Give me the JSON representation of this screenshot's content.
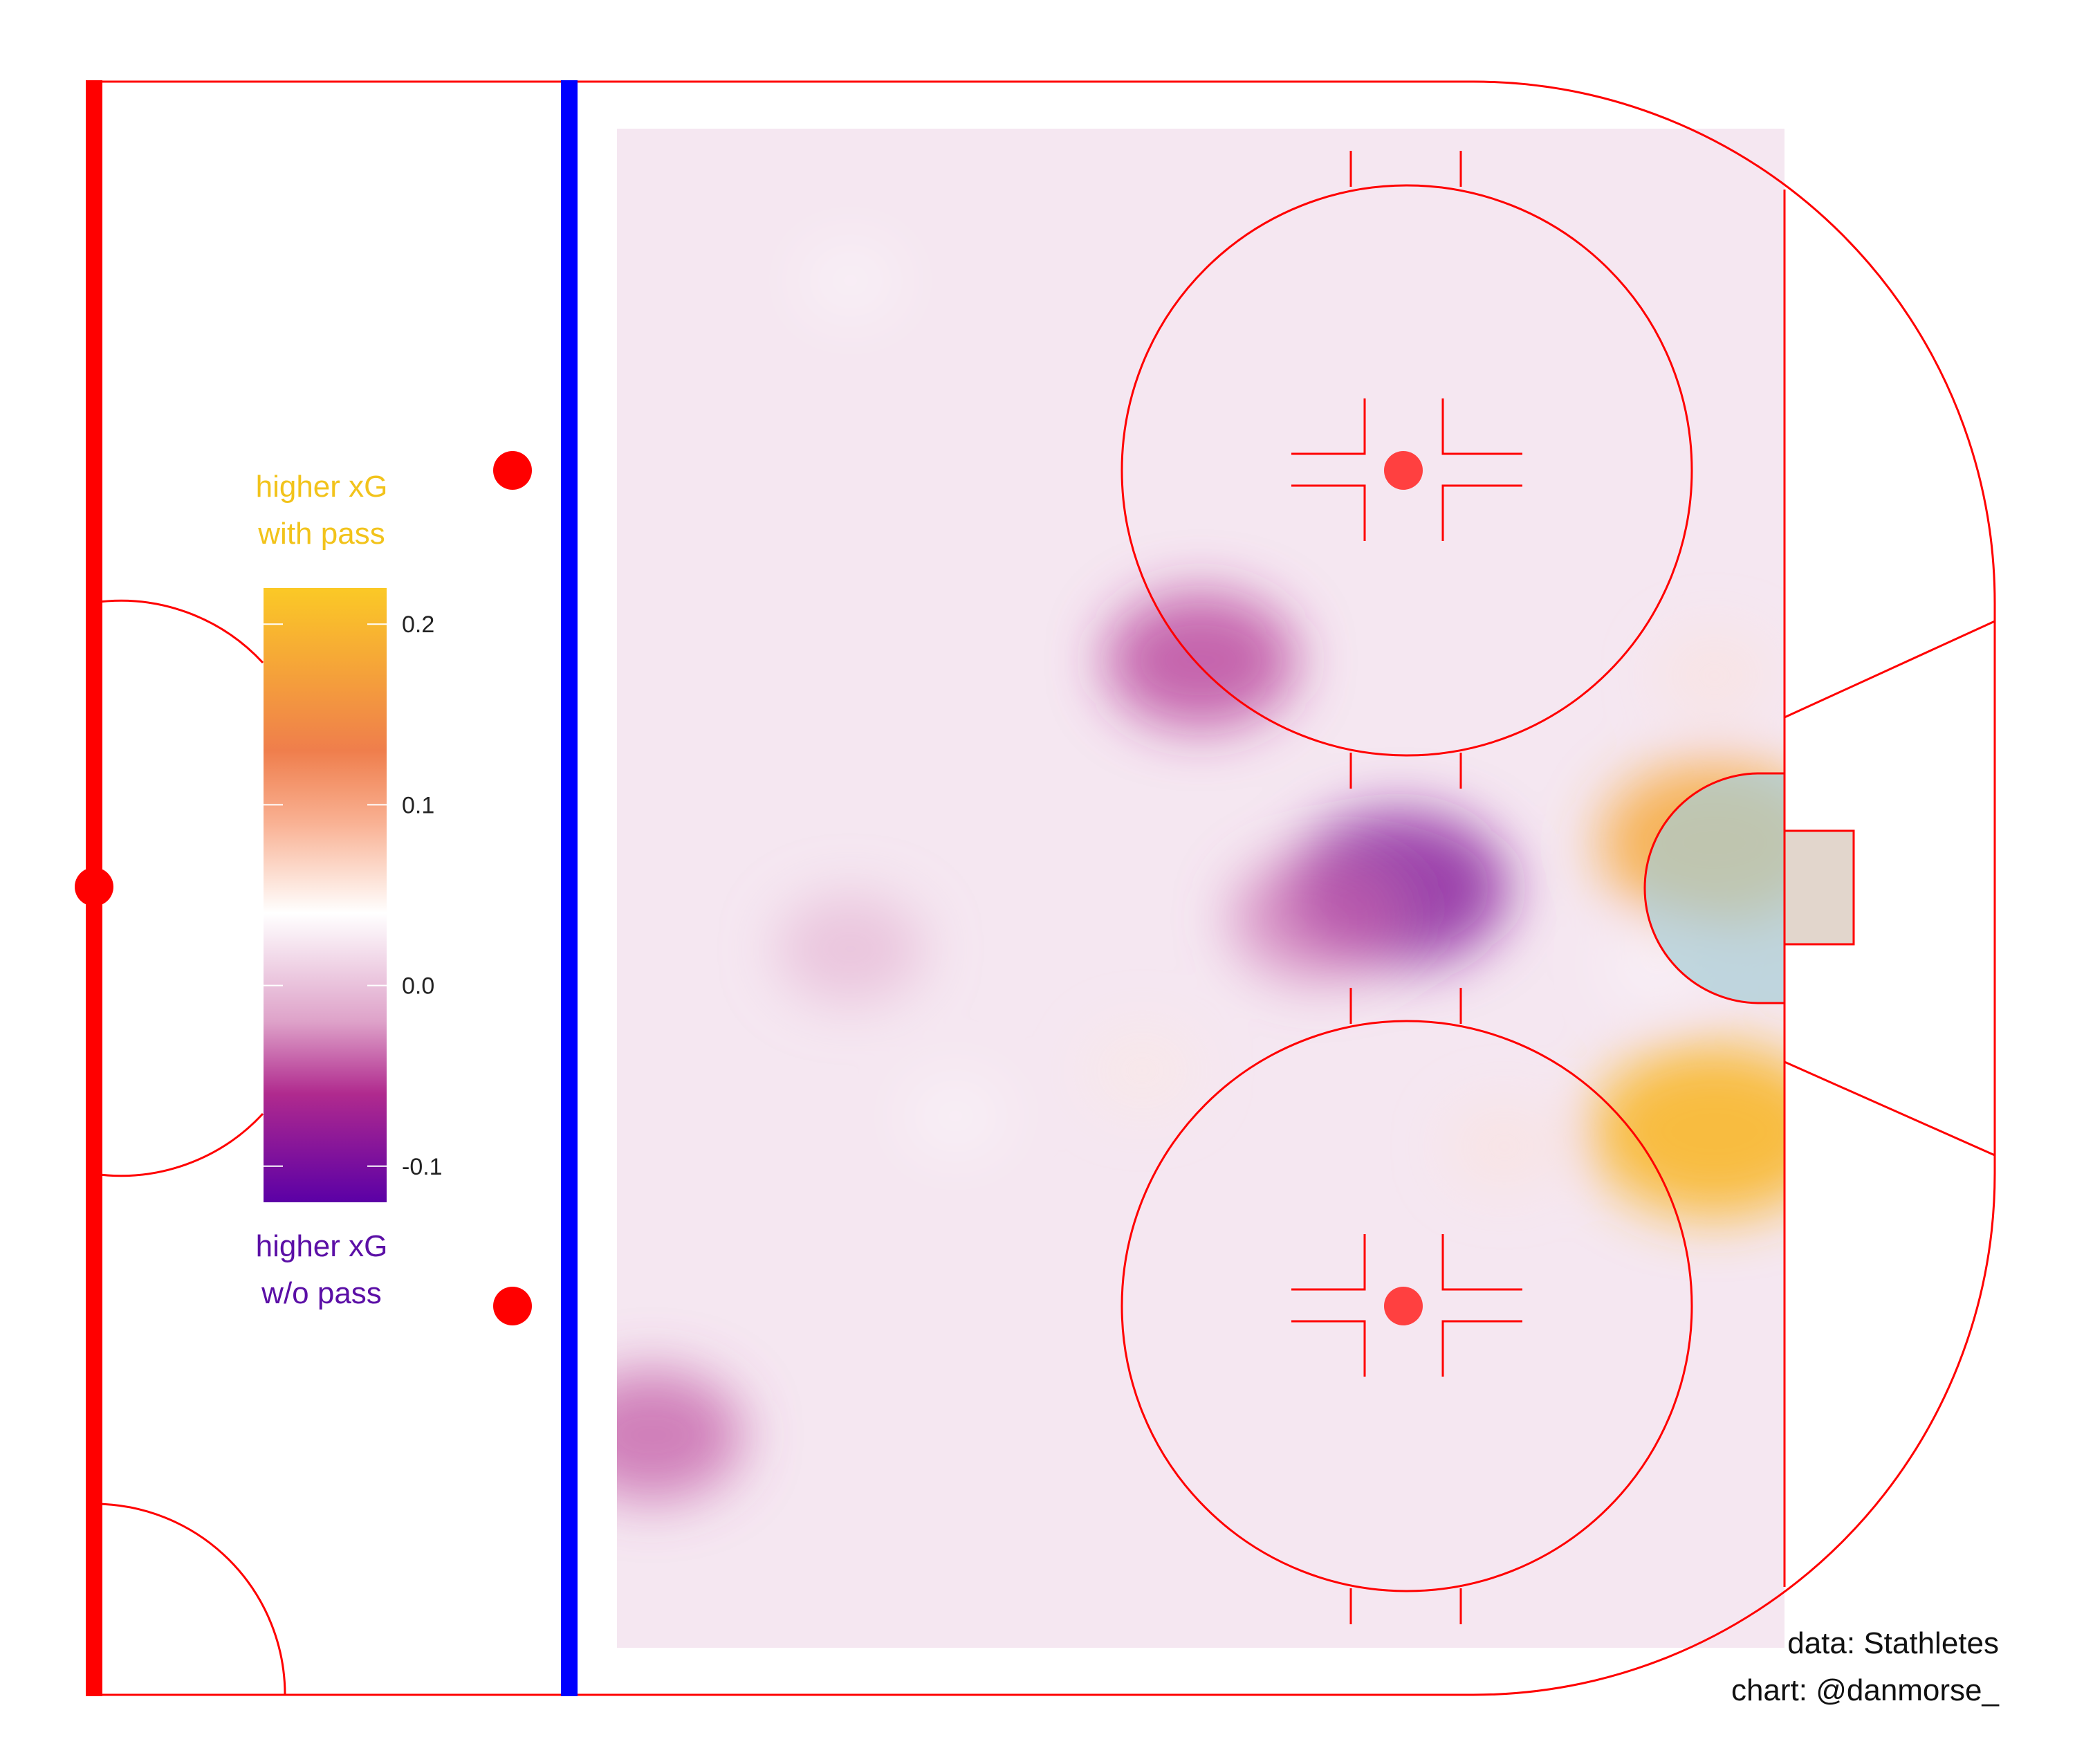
{
  "chart_data": {
    "type": "heatmap",
    "title": "",
    "xlabel": "",
    "ylabel": "",
    "colorbar": {
      "range": [
        -0.12,
        0.22
      ],
      "ticks": [
        -0.1,
        0.0,
        0.1,
        0.2
      ],
      "tick_labels": [
        "-0.1",
        "0.0",
        "0.1",
        "0.2"
      ],
      "stops": [
        {
          "value": -0.12,
          "color": "#5b00a6"
        },
        {
          "value": -0.06,
          "color": "#b02a8e"
        },
        {
          "value": -0.02,
          "color": "#dea2c9"
        },
        {
          "value": 0.04,
          "color": "#ffffff"
        },
        {
          "value": 0.09,
          "color": "#f9b193"
        },
        {
          "value": 0.13,
          "color": "#ef7e4c"
        },
        {
          "value": 0.22,
          "color": "#fbc926"
        }
      ]
    },
    "legend": {
      "placement": "left",
      "high_label": [
        "higher xG",
        "with pass"
      ],
      "low_label": [
        "higher xG",
        "w/o pass"
      ],
      "high_color": "#f2c31b",
      "low_color": "#5b0fa6"
    },
    "hotspots": [
      {
        "x": 0.67,
        "y": 0.5,
        "value": -0.09
      },
      {
        "x": 0.6,
        "y": 0.52,
        "value": -0.04
      },
      {
        "x": 0.5,
        "y": 0.35,
        "value": -0.06
      },
      {
        "x": 0.03,
        "y": 0.86,
        "value": -0.05
      },
      {
        "x": 0.2,
        "y": 0.54,
        "value": -0.015
      },
      {
        "x": 0.45,
        "y": 0.62,
        "value": 0.055
      },
      {
        "x": 0.94,
        "y": 0.47,
        "value": 0.18
      },
      {
        "x": 0.94,
        "y": 0.66,
        "value": 0.2
      },
      {
        "x": 0.76,
        "y": 0.67,
        "value": 0.06
      },
      {
        "x": 0.94,
        "y": 0.36,
        "value": 0.06
      },
      {
        "x": 0.2,
        "y": 0.1,
        "value": 0.04
      },
      {
        "x": 0.29,
        "y": 0.65,
        "value": 0.04
      },
      {
        "x": 0.89,
        "y": 0.55,
        "value": 0.04
      }
    ]
  },
  "colors": {
    "rink_line": "#ff0000",
    "blue_line": "#0000ff",
    "faceoff_dot": "#ff4040",
    "crease_fill": "#a8cdd6",
    "net_fill": "#e2d6cc",
    "base_tint": "#f5e7f1"
  },
  "credits": {
    "data": "data: Stathletes",
    "chart": "chart: @danmorse_"
  }
}
